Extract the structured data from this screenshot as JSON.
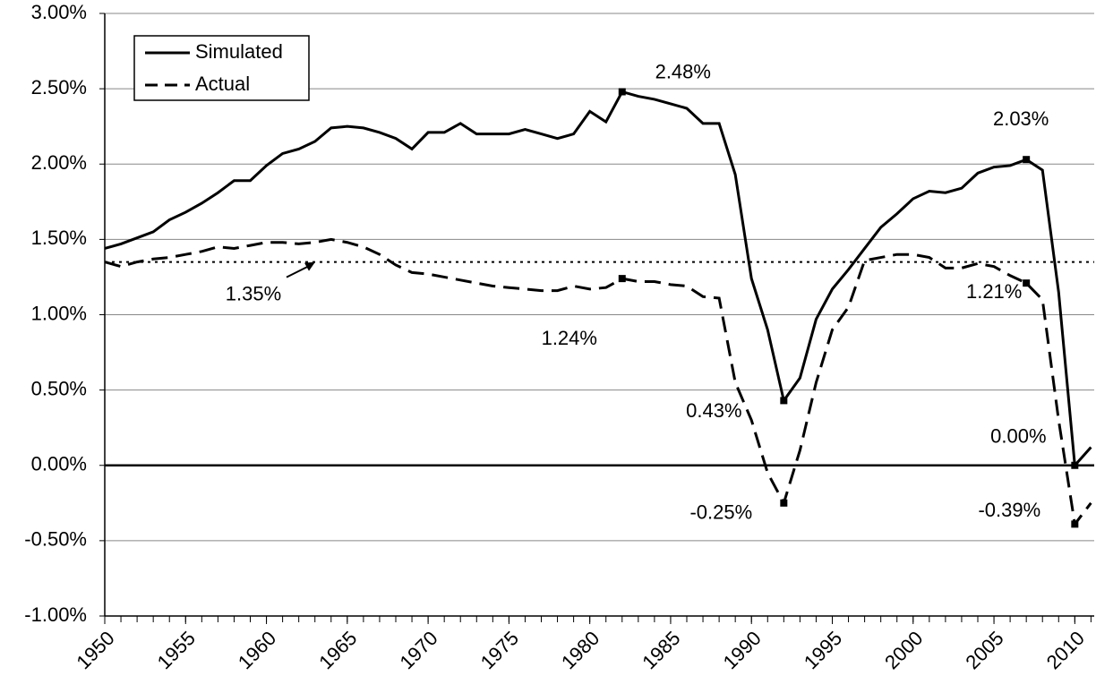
{
  "chart_data": {
    "type": "line",
    "x": [
      1950,
      1951,
      1952,
      1953,
      1954,
      1955,
      1956,
      1957,
      1958,
      1959,
      1960,
      1961,
      1962,
      1963,
      1964,
      1965,
      1966,
      1967,
      1968,
      1969,
      1970,
      1971,
      1972,
      1973,
      1974,
      1975,
      1976,
      1977,
      1978,
      1979,
      1980,
      1981,
      1982,
      1983,
      1984,
      1985,
      1986,
      1987,
      1988,
      1989,
      1990,
      1991,
      1992,
      1993,
      1994,
      1995,
      1996,
      1997,
      1998,
      1999,
      2000,
      2001,
      2002,
      2003,
      2004,
      2005,
      2006,
      2007,
      2008,
      2009,
      2010,
      2011
    ],
    "series": [
      {
        "name": "Simulated",
        "color": "#000000",
        "dash": false,
        "values": [
          1.44,
          1.47,
          1.51,
          1.55,
          1.63,
          1.68,
          1.74,
          1.81,
          1.89,
          1.89,
          1.99,
          2.07,
          2.1,
          2.15,
          2.24,
          2.25,
          2.24,
          2.21,
          2.17,
          2.1,
          2.21,
          2.21,
          2.27,
          2.2,
          2.2,
          2.2,
          2.23,
          2.2,
          2.17,
          2.2,
          2.35,
          2.28,
          2.48,
          2.45,
          2.43,
          2.4,
          2.37,
          2.27,
          2.27,
          1.93,
          1.24,
          0.9,
          0.43,
          0.58,
          0.97,
          1.17,
          1.3,
          1.44,
          1.58,
          1.67,
          1.77,
          1.82,
          1.81,
          1.84,
          1.94,
          1.98,
          1.99,
          2.03,
          1.96,
          1.15,
          0.0,
          0.12
        ]
      },
      {
        "name": "Actual",
        "color": "#000000",
        "dash": true,
        "values": [
          1.35,
          1.32,
          1.35,
          1.37,
          1.38,
          1.4,
          1.42,
          1.45,
          1.44,
          1.46,
          1.48,
          1.48,
          1.47,
          1.48,
          1.5,
          1.48,
          1.45,
          1.4,
          1.33,
          1.28,
          1.27,
          1.25,
          1.23,
          1.21,
          1.19,
          1.18,
          1.17,
          1.16,
          1.16,
          1.19,
          1.17,
          1.18,
          1.24,
          1.22,
          1.22,
          1.2,
          1.19,
          1.12,
          1.11,
          0.55,
          0.3,
          -0.05,
          -0.25,
          0.1,
          0.55,
          0.9,
          1.05,
          1.36,
          1.38,
          1.4,
          1.4,
          1.38,
          1.31,
          1.31,
          1.34,
          1.32,
          1.26,
          1.21,
          1.1,
          0.3,
          -0.39,
          -0.25
        ]
      }
    ],
    "annotations": [
      {
        "label": "2.48%",
        "x": 1982,
        "y": 2.48
      },
      {
        "label": "2.03%",
        "x": 2007,
        "y": 2.03
      },
      {
        "label": "1.24%",
        "x": 1982,
        "y": 1.24
      },
      {
        "label": "1.21%",
        "x": 2007,
        "y": 1.21
      },
      {
        "label": "0.43%",
        "x": 1992,
        "y": 0.43
      },
      {
        "label": "0.00%",
        "x": 2010,
        "y": 0.0
      },
      {
        "label": "-0.25%",
        "x": 1992,
        "y": -0.25
      },
      {
        "label": "-0.39%",
        "x": 2010,
        "y": -0.39
      }
    ],
    "reference_line": {
      "value": 1.35,
      "label": "1.35%"
    },
    "xlim": [
      1950,
      2011.2
    ],
    "xticks": [
      1950,
      1955,
      1960,
      1965,
      1970,
      1975,
      1980,
      1985,
      1990,
      1995,
      2000,
      2005,
      2010
    ],
    "ylim": [
      -1,
      3
    ],
    "yticks": [
      {
        "value": -1,
        "label": "-1.00%"
      },
      {
        "value": -0.5,
        "label": "-0.50%"
      },
      {
        "value": 0,
        "label": "0.00%"
      },
      {
        "value": 0.5,
        "label": "0.50%"
      },
      {
        "value": 1,
        "label": "1.00%"
      },
      {
        "value": 1.5,
        "label": "1.50%"
      },
      {
        "value": 2,
        "label": "2.00%"
      },
      {
        "value": 2.5,
        "label": "2.50%"
      },
      {
        "value": 3,
        "label": "3.00%"
      }
    ],
    "grid": true,
    "legend": "upper left"
  }
}
